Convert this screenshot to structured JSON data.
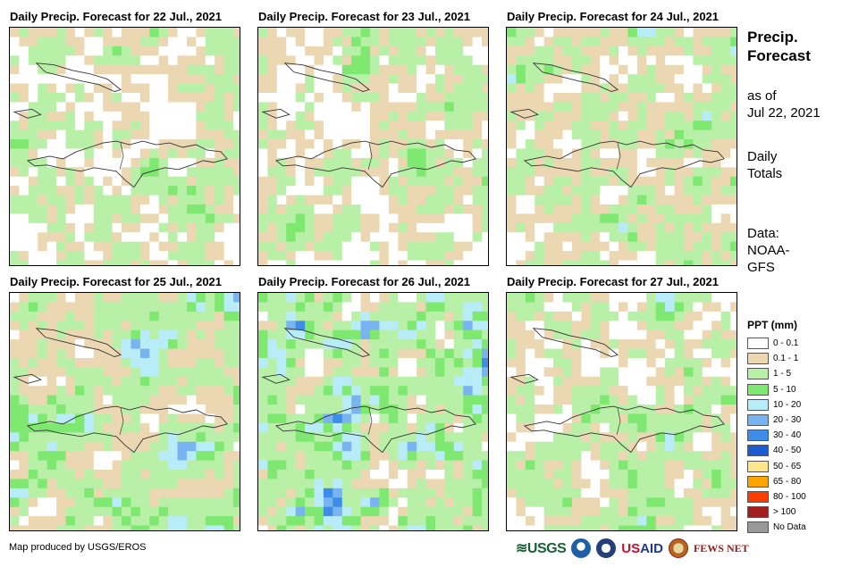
{
  "panels": [
    {
      "title": "Daily Precip. Forecast for 22 Jul., 2021",
      "seed": 3,
      "weights": [
        0.3,
        0.3,
        0.38,
        0.02,
        0,
        0,
        0,
        0,
        0,
        0,
        0,
        0
      ]
    },
    {
      "title": "Daily Precip. Forecast for 23 Jul., 2021",
      "seed": 11,
      "weights": [
        0.28,
        0.35,
        0.34,
        0.03,
        0,
        0,
        0,
        0,
        0,
        0,
        0,
        0
      ]
    },
    {
      "title": "Daily Precip. Forecast for 24 Jul., 2021",
      "seed": 19,
      "weights": [
        0.14,
        0.42,
        0.4,
        0.03,
        0.01,
        0,
        0,
        0,
        0,
        0,
        0,
        0
      ]
    },
    {
      "title": "Daily Precip. Forecast for 25 Jul., 2021",
      "seed": 27,
      "weights": [
        0.05,
        0.32,
        0.45,
        0.1,
        0.07,
        0.01,
        0,
        0,
        0,
        0,
        0,
        0
      ]
    },
    {
      "title": "Daily Precip. Forecast for 26 Jul., 2021",
      "seed": 35,
      "weights": [
        0.06,
        0.14,
        0.48,
        0.16,
        0.12,
        0.03,
        0.01,
        0,
        0,
        0,
        0,
        0
      ]
    },
    {
      "title": "Daily Precip. Forecast for 27 Jul., 2021",
      "seed": 43,
      "weights": [
        0.22,
        0.3,
        0.42,
        0.05,
        0.01,
        0,
        0,
        0,
        0,
        0,
        0,
        0
      ]
    }
  ],
  "sidebar": {
    "title_line1": "Precip.",
    "title_line2": "Forecast",
    "asof_line1": "as of",
    "asof_line2": "Jul 22, 2021",
    "totals_line1": "Daily",
    "totals_line2": "Totals",
    "data_line1": "Data:",
    "data_line2": "NOAA-",
    "data_line3": "GFS"
  },
  "legend": {
    "title": "PPT (mm)",
    "items": [
      {
        "label": "0 - 0.1",
        "color": "#ffffff"
      },
      {
        "label": "0.1 - 1",
        "color": "#ebd8b2"
      },
      {
        "label": "1 - 5",
        "color": "#b8f0a8"
      },
      {
        "label": "5 - 10",
        "color": "#7ee870"
      },
      {
        "label": "10 - 20",
        "color": "#b8ecf8"
      },
      {
        "label": "20 - 30",
        "color": "#78b4f0"
      },
      {
        "label": "30 - 40",
        "color": "#3c8ce8"
      },
      {
        "label": "40 - 50",
        "color": "#1e5ad2"
      },
      {
        "label": "50 - 65",
        "color": "#ffe68c"
      },
      {
        "label": "65 - 80",
        "color": "#ffa500"
      },
      {
        "label": "80 - 100",
        "color": "#ff3c00"
      },
      {
        "label": "> 100",
        "color": "#a01e1e"
      },
      {
        "label": "No Data",
        "color": "#999999"
      }
    ]
  },
  "footer": {
    "credit": "Map produced by USGS/EROS",
    "logo_usgs": "USGS",
    "logo_usaid_a": "US",
    "logo_usaid_b": "AID",
    "logo_fews": "FEWS NET"
  }
}
